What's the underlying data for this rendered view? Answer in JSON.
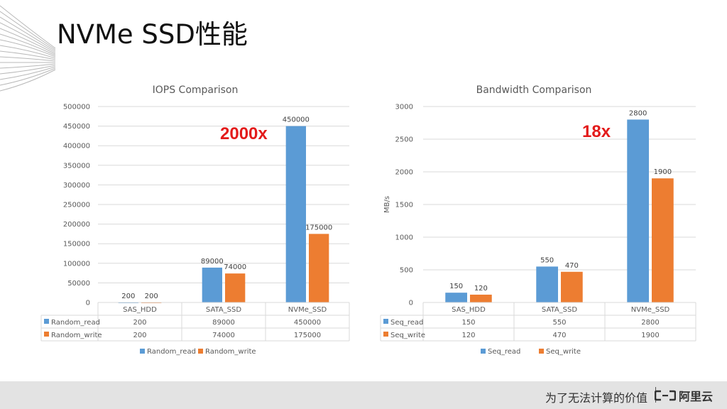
{
  "slide": {
    "title": "NVMe SSD性能",
    "annotations": {
      "iops_multiplier": "2000x",
      "bandwidth_multiplier": "18x"
    },
    "footer": {
      "slogan": "为了无法计算的价值",
      "brand": "阿里云",
      "logo_icon": "aliyun-logo-icon"
    }
  },
  "chart_data": [
    {
      "type": "bar",
      "title": "IOPS Comparison",
      "ylabel": "",
      "xlabel": "",
      "categories": [
        "SAS_HDD",
        "SATA_SSD",
        "NVMe_SSD"
      ],
      "series": [
        {
          "name": "Random_read",
          "values": [
            200,
            89000,
            450000
          ],
          "color": "#5b9bd5"
        },
        {
          "name": "Random_write",
          "values": [
            200,
            74000,
            175000
          ],
          "color": "#ed7d31"
        }
      ],
      "ylim": [
        0,
        500000
      ],
      "yticks": [
        "0",
        "50000",
        "100000",
        "150000",
        "200000",
        "250000",
        "300000",
        "350000",
        "400000",
        "450000",
        "500000"
      ],
      "data_labels": [
        [
          "200",
          "89000",
          "450000"
        ],
        [
          "200",
          "74000",
          "175000"
        ]
      ],
      "table_rows": [
        [
          "200",
          "89000",
          "450000"
        ],
        [
          "200",
          "74000",
          "175000"
        ]
      ],
      "grid": true,
      "legend": "bottom"
    },
    {
      "type": "bar",
      "title": "Bandwidth Comparison",
      "ylabel": "MB/s",
      "xlabel": "",
      "categories": [
        "SAS_HDD",
        "SATA_SSD",
        "NVMe_SSD"
      ],
      "series": [
        {
          "name": "Seq_read",
          "values": [
            150,
            550,
            2800
          ],
          "color": "#5b9bd5"
        },
        {
          "name": "Seq_write",
          "values": [
            120,
            470,
            1900
          ],
          "color": "#ed7d31"
        }
      ],
      "ylim": [
        0,
        3000
      ],
      "yticks": [
        "0",
        "500",
        "1000",
        "1500",
        "2000",
        "2500",
        "3000"
      ],
      "data_labels": [
        [
          "150",
          "550",
          "2800"
        ],
        [
          "120",
          "470",
          "1900"
        ]
      ],
      "table_rows": [
        [
          "150",
          "550",
          "2800"
        ],
        [
          "120",
          "470",
          "1900"
        ]
      ],
      "grid": true,
      "legend": "bottom"
    }
  ]
}
